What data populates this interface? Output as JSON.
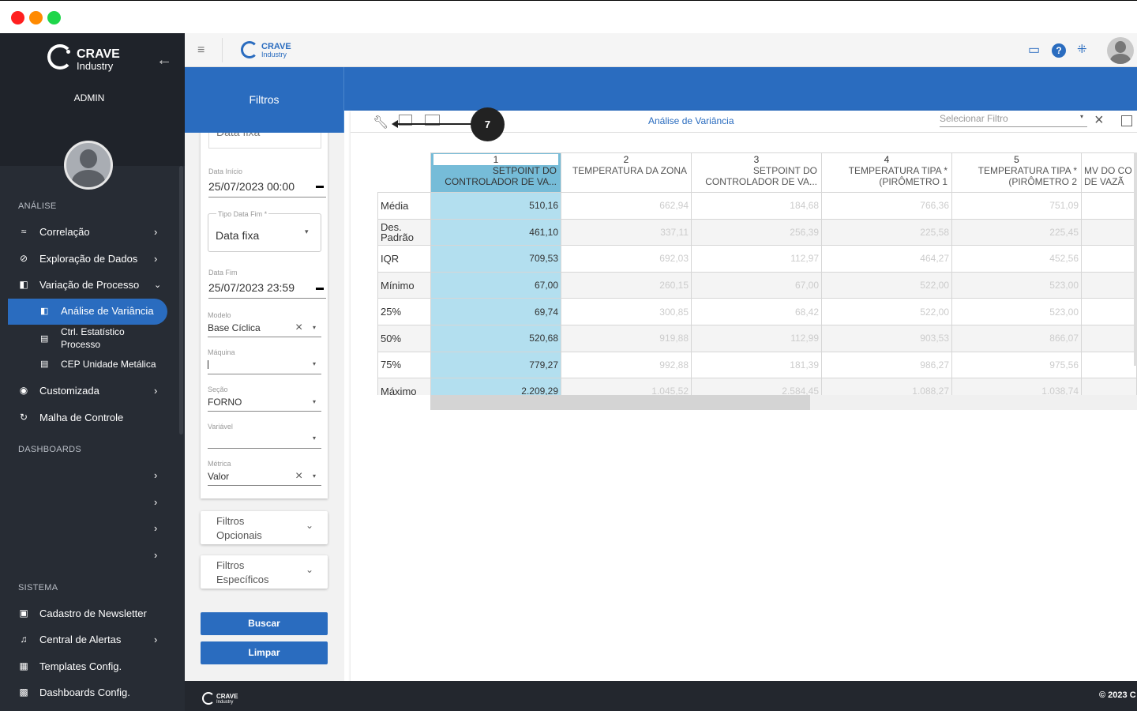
{
  "window": {
    "colors": {
      "close": "#ff3b30",
      "minimize": "#ff9500",
      "maximize": "#28cd41"
    }
  },
  "brand": {
    "name": "CRAVE",
    "sub": "Industry"
  },
  "sidebar": {
    "user": "ADMIN",
    "section_analise": "ANÁLISE",
    "items_analise": [
      {
        "label": "Correlação",
        "icon": "trend-icon"
      },
      {
        "label": "Exploração de Dados",
        "icon": "explore-icon"
      },
      {
        "label": "Variação de Processo",
        "icon": "process-icon"
      }
    ],
    "sub_items": [
      {
        "label": "Análise de Variância",
        "icon": "variance-icon"
      },
      {
        "label": "Ctrl. Estatístico\nProcesso",
        "line1": "Ctrl. Estatístico",
        "line2": "Processo",
        "icon": "table-icon"
      },
      {
        "label": "CEP Unidade Metálica",
        "icon": "table-icon"
      }
    ],
    "items_more": [
      {
        "label": "Customizada",
        "icon": "palette-icon"
      },
      {
        "label": "Malha de Controle",
        "icon": "loop-icon"
      }
    ],
    "section_dashboards": "DASHBOARDS",
    "section_sistema": "SISTEMA",
    "items_sistema": [
      {
        "label": "Cadastro de Newsletter",
        "icon": "newsletter-icon"
      },
      {
        "label": "Central de Alertas",
        "icon": "bell-icon"
      },
      {
        "label": "Templates Config.",
        "icon": "template-icon"
      },
      {
        "label": "Dashboards Config.",
        "icon": "dashboard-icon"
      }
    ]
  },
  "filters": {
    "title": "Filtros",
    "data_fixa_top": "Data fixa",
    "data_inicio_label": "Data Início",
    "data_inicio": "25/07/2023 00:00",
    "tipo_data_fim_label": "Tipo Data Fim *",
    "tipo_data_fim": "Data fixa",
    "data_fim_label": "Data Fim",
    "data_fim": "25/07/2023 23:59",
    "modelo_label": "Modelo",
    "modelo": "Base Cíclica",
    "maquina_label": "Máquina",
    "maquina": "",
    "secao_label": "Seção",
    "secao": "FORNO",
    "variavel_label": "Variável",
    "variavel": "",
    "metrica_label": "Métrica",
    "metrica": "Valor",
    "opcionais": "Filtros\nOpcionais",
    "opcionais_1": "Filtros",
    "opcionais_2": "Opcionais",
    "especificos_1": "Filtros",
    "especificos_2": "Específicos",
    "buscar": "Buscar",
    "limpar": "Limpar"
  },
  "main": {
    "title": "Análise de Variância",
    "select_placeholder": "Selecionar Filtro",
    "callout": "7"
  },
  "table": {
    "columns": [
      {
        "num": "1",
        "name": "SETPOINT DO CONTROLADOR DE VA..."
      },
      {
        "num": "2",
        "name": "TEMPERATURA DA ZONA"
      },
      {
        "num": "3",
        "name": "SETPOINT DO CONTROLADOR DE VA..."
      },
      {
        "num": "4",
        "name": "TEMPERATURA TIPA * (PIRÔMETRO 1"
      },
      {
        "num": "5",
        "name": "TEMPERATURA TIPA * (PIRÔMETRO 2"
      },
      {
        "num": "",
        "name": "MV DO CO DE VAZÃ"
      }
    ],
    "rows": [
      {
        "label": "Média",
        "values": [
          "510,16",
          "662,94",
          "184,68",
          "766,36",
          "751,09",
          ""
        ]
      },
      {
        "label": "Des. Padrão",
        "values": [
          "461,10",
          "337,11",
          "256,39",
          "225,58",
          "225,45",
          ""
        ]
      },
      {
        "label": "IQR",
        "values": [
          "709,53",
          "692,03",
          "112,97",
          "464,27",
          "452,56",
          ""
        ]
      },
      {
        "label": "Mínimo",
        "values": [
          "67,00",
          "260,15",
          "67,00",
          "522,00",
          "523,00",
          ""
        ]
      },
      {
        "label": "25%",
        "values": [
          "69,74",
          "300,85",
          "68,42",
          "522,00",
          "523,00",
          ""
        ]
      },
      {
        "label": "50%",
        "values": [
          "520,68",
          "919,88",
          "112,99",
          "903,53",
          "866,07",
          ""
        ]
      },
      {
        "label": "75%",
        "values": [
          "779,27",
          "992,88",
          "181,39",
          "986,27",
          "975,56",
          ""
        ]
      },
      {
        "label": "Máximo",
        "values": [
          "2.209,29",
          "1.045,52",
          "2.584,45",
          "1.088,27",
          "1.038,74",
          ""
        ]
      }
    ]
  },
  "footer": {
    "copyright": "© 2023 C"
  }
}
